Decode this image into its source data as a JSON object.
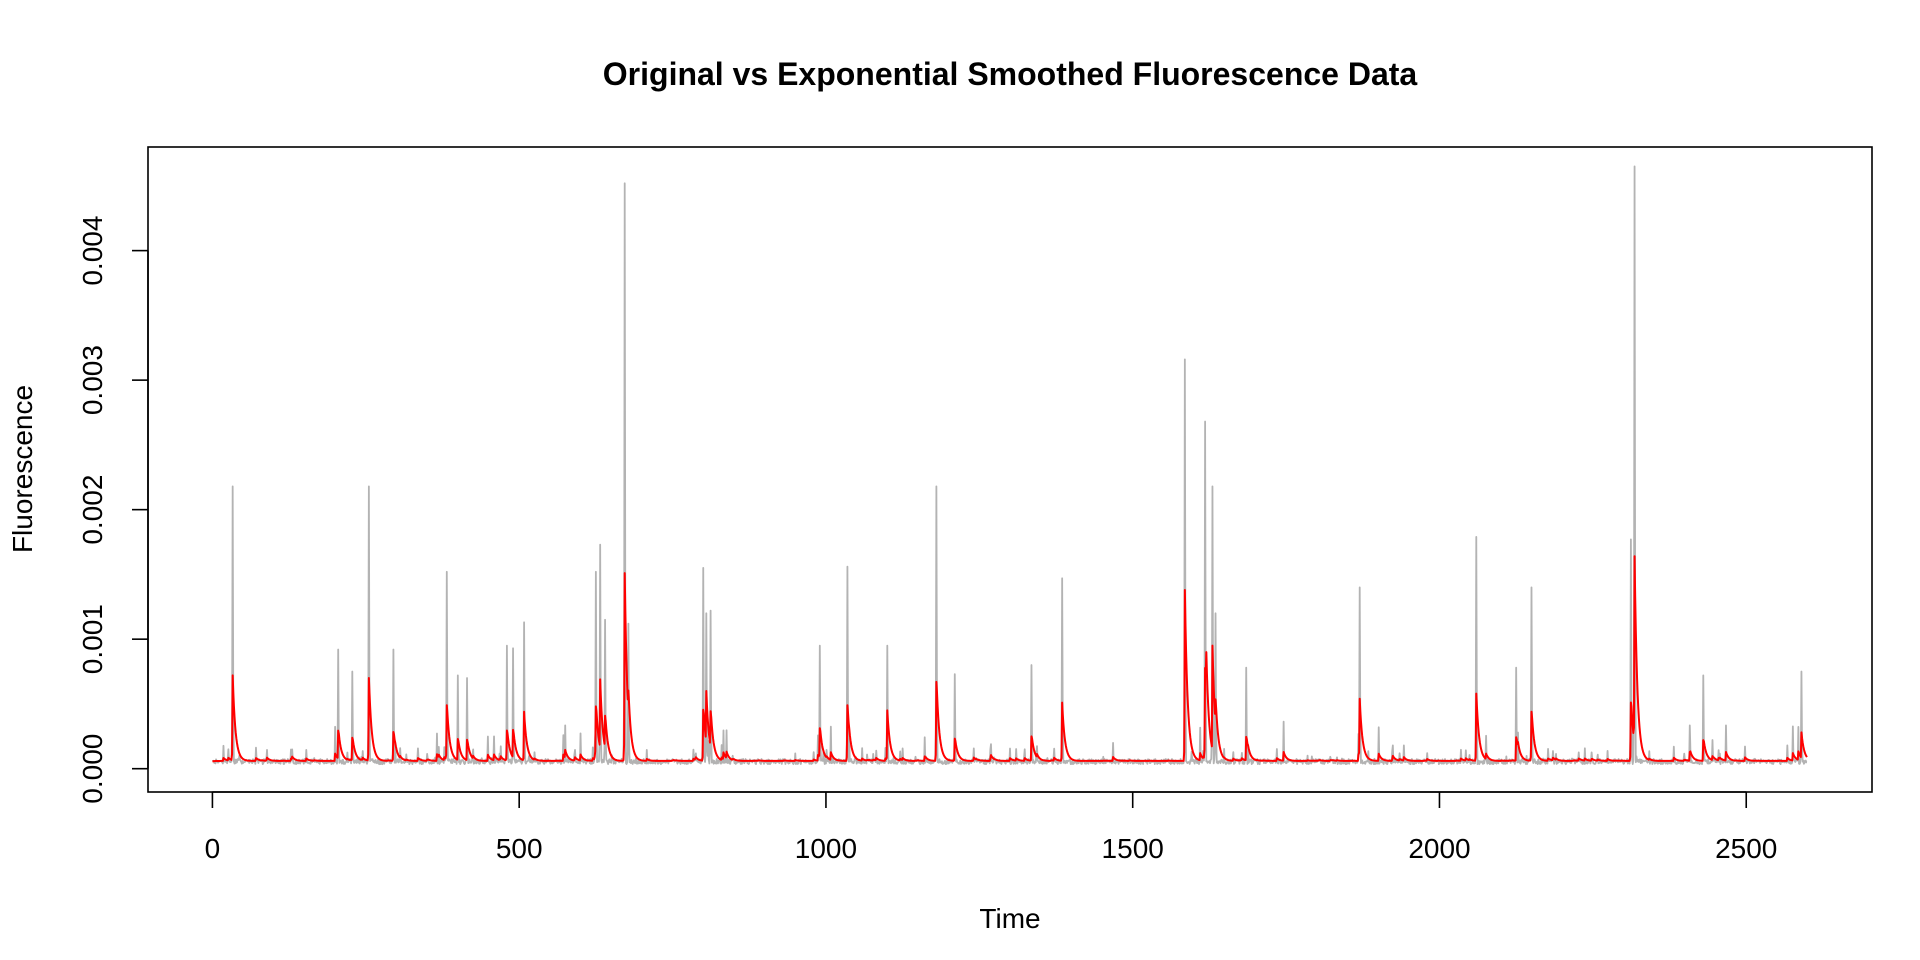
{
  "chart_data": {
    "type": "line",
    "title": "Original vs Exponential Smoothed Fluorescence Data",
    "xlabel": "Time",
    "ylabel": "Fluorescence",
    "xlim": [
      -105,
      2705
    ],
    "ylim": [
      -0.00018,
      0.0048
    ],
    "x_ticks": [
      0,
      500,
      1000,
      1500,
      2000,
      2500
    ],
    "x_tick_labels": [
      "0",
      "500",
      "1000",
      "1500",
      "2000",
      "2500"
    ],
    "y_ticks": [
      0.0,
      0.001,
      0.002,
      0.003,
      0.004
    ],
    "y_tick_labels": [
      "0.000",
      "0.001",
      "0.002",
      "0.003",
      "0.004"
    ],
    "grid": false,
    "legend": "none",
    "series_colors": {
      "original": "#b3b3b3",
      "smoothed": "#ff0000"
    },
    "n_points": 2600,
    "series": [
      {
        "role": "original",
        "peaks": [
          [
            33,
            0.00218
          ],
          [
            205,
            0.00092
          ],
          [
            228,
            0.00075
          ],
          [
            255,
            0.00218
          ],
          [
            295,
            0.00092
          ],
          [
            382,
            0.00152
          ],
          [
            400,
            0.00072
          ],
          [
            415,
            0.0007
          ],
          [
            480,
            0.00095
          ],
          [
            490,
            0.00093
          ],
          [
            508,
            0.00113
          ],
          [
            625,
            0.00152
          ],
          [
            632,
            0.00173
          ],
          [
            640,
            0.00115
          ],
          [
            672,
            0.00452
          ],
          [
            678,
            0.00112
          ],
          [
            800,
            0.00155
          ],
          [
            805,
            0.0012
          ],
          [
            812,
            0.00122
          ],
          [
            990,
            0.00095
          ],
          [
            1035,
            0.00156
          ],
          [
            1100,
            0.00095
          ],
          [
            1180,
            0.00218
          ],
          [
            1210,
            0.00073
          ],
          [
            1335,
            0.0008
          ],
          [
            1385,
            0.00147
          ],
          [
            1585,
            0.00316
          ],
          [
            1618,
            0.00268
          ],
          [
            1630,
            0.00218
          ],
          [
            1635,
            0.0012
          ],
          [
            1685,
            0.00078
          ],
          [
            1870,
            0.0014
          ],
          [
            2060,
            0.00179
          ],
          [
            2125,
            0.00078
          ],
          [
            2150,
            0.0014
          ],
          [
            2312,
            0.00177
          ],
          [
            2318,
            0.00465
          ],
          [
            2430,
            0.00072
          ],
          [
            2590,
            0.00075
          ]
        ]
      },
      {
        "role": "smoothed",
        "peaks": [
          [
            33,
            0.00072
          ],
          [
            255,
            0.0007
          ],
          [
            382,
            0.00049
          ],
          [
            508,
            0.00044
          ],
          [
            632,
            0.00069
          ],
          [
            672,
            0.00151
          ],
          [
            805,
            0.0006
          ],
          [
            1035,
            0.00049
          ],
          [
            1100,
            0.00045
          ],
          [
            1180,
            0.00067
          ],
          [
            1385,
            0.00051
          ],
          [
            1585,
            0.00138
          ],
          [
            1620,
            0.0009
          ],
          [
            1630,
            0.00095
          ],
          [
            1870,
            0.00054
          ],
          [
            2060,
            0.00058
          ],
          [
            2150,
            0.00044
          ],
          [
            2318,
            0.00164
          ],
          [
            2590,
            0.00028
          ]
        ]
      }
    ]
  }
}
